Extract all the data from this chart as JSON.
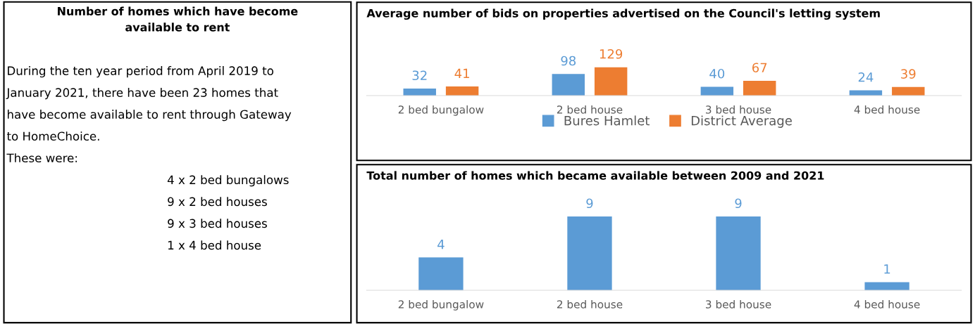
{
  "chart_data": [
    {
      "type": "other",
      "title": "Number of homes which have become\navailable to rent",
      "annotations": [
        "During the ten year period from April 2019 to",
        "January 2021, there have been 23 homes that",
        "have become available to rent through Gateway",
        "to HomeChoice.",
        "These were:",
        "4 x 2 bed bungalows",
        "9 x 2 bed houses",
        "9 x 3 bed houses",
        "1 x 4 bed house"
      ]
    },
    {
      "type": "bar",
      "title": "Average number of bids on properties advertised on the Council's letting system",
      "categories": [
        "2 bed bungalow",
        "2 bed house",
        "3 bed house",
        "4 bed house"
      ],
      "series": [
        {
          "name": "Bures Hamlet",
          "color": "#5b9bd5",
          "values": [
            32,
            98,
            40,
            24
          ]
        },
        {
          "name": "District Average",
          "color": "#ed7d31",
          "values": [
            41,
            129,
            67,
            39
          ]
        }
      ],
      "data_labels": true,
      "legend": "bottom",
      "grid": false
    },
    {
      "type": "bar",
      "title": "Total number of homes which became available between 2009 and 2021",
      "categories": [
        "2 bed bungalow",
        "2 bed house",
        "3 bed house",
        "4 bed house"
      ],
      "series": [
        {
          "color": "#5b9bd5",
          "values": [
            4,
            9,
            9,
            1
          ]
        }
      ],
      "data_labels": true,
      "grid": false
    }
  ]
}
